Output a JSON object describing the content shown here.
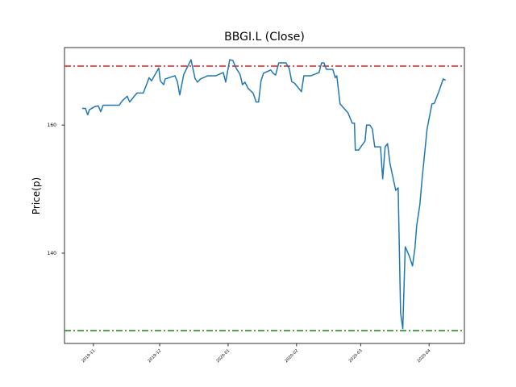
{
  "chart_data": {
    "type": "line",
    "title": "BBGI.L (Close)",
    "y_label": "Price(p)",
    "x": [
      -5.1,
      -3.6,
      -2.6,
      -1.8,
      0.7,
      2.2,
      3.3,
      4.4,
      11.7,
      13.1,
      15.3,
      16.4,
      19.7,
      22.6,
      23.7,
      25.2,
      26.3,
      29.6,
      30.3,
      31.8,
      32.5,
      36.9,
      38.0,
      39.1,
      40.9,
      44.2,
      46.0,
      47.1,
      48.5,
      51.8,
      55.5,
      58.8,
      59.9,
      61.7,
      63.1,
      64.6,
      66.4,
      67.5,
      68.6,
      70.1,
      72.3,
      73.7,
      74.8,
      75.9,
      77.0,
      80.3,
      81.4,
      82.5,
      83.9,
      87.2,
      88.7,
      89.8,
      91.2,
      94.2,
      95.3,
      98.5,
      102.2,
      103.3,
      104.4,
      105.5,
      108.4,
      109.5,
      110.2,
      111.7,
      115.3,
      117.2,
      118.2,
      118.6,
      120.1,
      123.0,
      123.7,
      125.2,
      126.3,
      127.4,
      130.0,
      131.0,
      132.1,
      133.2,
      134.3,
      136.9,
      138.0,
      139.1,
      140.1,
      141.2,
      143.1,
      144.5,
      145.6,
      146.4,
      147.8,
      148.9,
      151.1,
      153.3,
      154.4,
      156.6,
      158.4,
      159.5
    ],
    "values": [
      162.6,
      162.6,
      161.6,
      162.4,
      162.9,
      163.0,
      162.1,
      163.1,
      163.1,
      163.8,
      164.5,
      163.6,
      165.0,
      165.0,
      166.0,
      167.4,
      166.9,
      168.9,
      166.9,
      166.3,
      167.2,
      167.7,
      166.8,
      164.7,
      167.9,
      170.2,
      167.3,
      166.7,
      167.2,
      167.7,
      167.7,
      168.2,
      166.7,
      170.2,
      170.1,
      168.9,
      167.9,
      166.3,
      166.7,
      165.7,
      165.0,
      163.6,
      163.6,
      166.9,
      168.1,
      168.6,
      168.1,
      167.8,
      169.7,
      169.7,
      168.8,
      166.8,
      166.5,
      165.2,
      167.7,
      167.7,
      168.2,
      169.7,
      169.7,
      168.7,
      168.7,
      167.4,
      167.7,
      163.3,
      161.9,
      160.3,
      160.3,
      156.1,
      156.1,
      157.5,
      160.0,
      160.0,
      159.4,
      156.6,
      156.6,
      151.6,
      156.6,
      157.1,
      154.0,
      149.8,
      150.2,
      130.7,
      128.2,
      141.0,
      139.5,
      138.0,
      140.8,
      144.3,
      147.5,
      151.8,
      159.4,
      163.3,
      163.4,
      165.4,
      167.2,
      167.0
    ],
    "color": "#1f77b4",
    "xlim": [
      -13.1,
      168
    ],
    "xticks": [
      {
        "value": 0,
        "label": "2019-11"
      },
      {
        "value": 30,
        "label": "2019-12"
      },
      {
        "value": 61,
        "label": "2020-01"
      },
      {
        "value": 92,
        "label": "2020-02"
      },
      {
        "value": 121,
        "label": "2020-03"
      },
      {
        "value": 152,
        "label": "2020-04"
      }
    ],
    "ylim": [
      125.9,
      172.1
    ],
    "yticks": [
      140,
      160
    ],
    "hlines": [
      {
        "value": 169.2,
        "color": "#e41a1c"
      },
      {
        "value": 127.9,
        "color": "#1a7f1a"
      }
    ]
  }
}
